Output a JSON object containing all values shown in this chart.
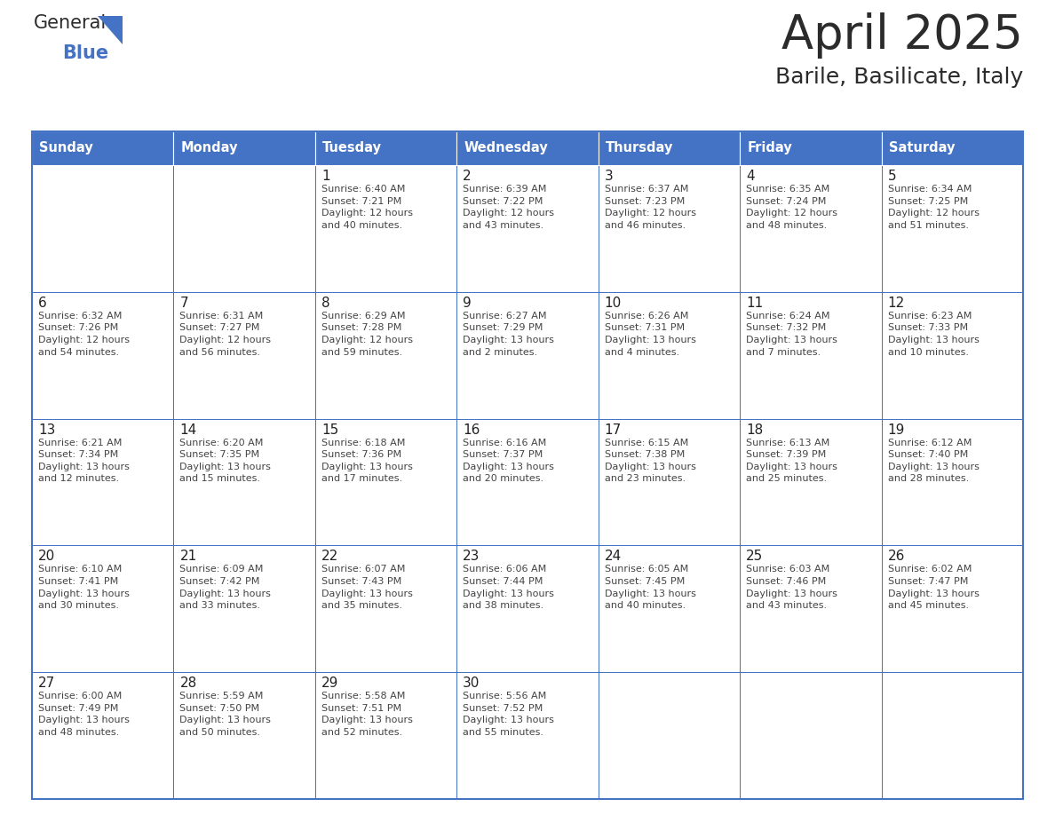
{
  "title": "April 2025",
  "subtitle": "Barile, Basilicate, Italy",
  "header_bg_color": "#4472C4",
  "header_text_color": "#FFFFFF",
  "border_color": "#4472C4",
  "cell_line_color": "#B0B8D0",
  "text_color": "#333333",
  "day_headers": [
    "Sunday",
    "Monday",
    "Tuesday",
    "Wednesday",
    "Thursday",
    "Friday",
    "Saturday"
  ],
  "weeks": [
    [
      {
        "day": "",
        "text": ""
      },
      {
        "day": "",
        "text": ""
      },
      {
        "day": "1",
        "text": "Sunrise: 6:40 AM\nSunset: 7:21 PM\nDaylight: 12 hours\nand 40 minutes."
      },
      {
        "day": "2",
        "text": "Sunrise: 6:39 AM\nSunset: 7:22 PM\nDaylight: 12 hours\nand 43 minutes."
      },
      {
        "day": "3",
        "text": "Sunrise: 6:37 AM\nSunset: 7:23 PM\nDaylight: 12 hours\nand 46 minutes."
      },
      {
        "day": "4",
        "text": "Sunrise: 6:35 AM\nSunset: 7:24 PM\nDaylight: 12 hours\nand 48 minutes."
      },
      {
        "day": "5",
        "text": "Sunrise: 6:34 AM\nSunset: 7:25 PM\nDaylight: 12 hours\nand 51 minutes."
      }
    ],
    [
      {
        "day": "6",
        "text": "Sunrise: 6:32 AM\nSunset: 7:26 PM\nDaylight: 12 hours\nand 54 minutes."
      },
      {
        "day": "7",
        "text": "Sunrise: 6:31 AM\nSunset: 7:27 PM\nDaylight: 12 hours\nand 56 minutes."
      },
      {
        "day": "8",
        "text": "Sunrise: 6:29 AM\nSunset: 7:28 PM\nDaylight: 12 hours\nand 59 minutes."
      },
      {
        "day": "9",
        "text": "Sunrise: 6:27 AM\nSunset: 7:29 PM\nDaylight: 13 hours\nand 2 minutes."
      },
      {
        "day": "10",
        "text": "Sunrise: 6:26 AM\nSunset: 7:31 PM\nDaylight: 13 hours\nand 4 minutes."
      },
      {
        "day": "11",
        "text": "Sunrise: 6:24 AM\nSunset: 7:32 PM\nDaylight: 13 hours\nand 7 minutes."
      },
      {
        "day": "12",
        "text": "Sunrise: 6:23 AM\nSunset: 7:33 PM\nDaylight: 13 hours\nand 10 minutes."
      }
    ],
    [
      {
        "day": "13",
        "text": "Sunrise: 6:21 AM\nSunset: 7:34 PM\nDaylight: 13 hours\nand 12 minutes."
      },
      {
        "day": "14",
        "text": "Sunrise: 6:20 AM\nSunset: 7:35 PM\nDaylight: 13 hours\nand 15 minutes."
      },
      {
        "day": "15",
        "text": "Sunrise: 6:18 AM\nSunset: 7:36 PM\nDaylight: 13 hours\nand 17 minutes."
      },
      {
        "day": "16",
        "text": "Sunrise: 6:16 AM\nSunset: 7:37 PM\nDaylight: 13 hours\nand 20 minutes."
      },
      {
        "day": "17",
        "text": "Sunrise: 6:15 AM\nSunset: 7:38 PM\nDaylight: 13 hours\nand 23 minutes."
      },
      {
        "day": "18",
        "text": "Sunrise: 6:13 AM\nSunset: 7:39 PM\nDaylight: 13 hours\nand 25 minutes."
      },
      {
        "day": "19",
        "text": "Sunrise: 6:12 AM\nSunset: 7:40 PM\nDaylight: 13 hours\nand 28 minutes."
      }
    ],
    [
      {
        "day": "20",
        "text": "Sunrise: 6:10 AM\nSunset: 7:41 PM\nDaylight: 13 hours\nand 30 minutes."
      },
      {
        "day": "21",
        "text": "Sunrise: 6:09 AM\nSunset: 7:42 PM\nDaylight: 13 hours\nand 33 minutes."
      },
      {
        "day": "22",
        "text": "Sunrise: 6:07 AM\nSunset: 7:43 PM\nDaylight: 13 hours\nand 35 minutes."
      },
      {
        "day": "23",
        "text": "Sunrise: 6:06 AM\nSunset: 7:44 PM\nDaylight: 13 hours\nand 38 minutes."
      },
      {
        "day": "24",
        "text": "Sunrise: 6:05 AM\nSunset: 7:45 PM\nDaylight: 13 hours\nand 40 minutes."
      },
      {
        "day": "25",
        "text": "Sunrise: 6:03 AM\nSunset: 7:46 PM\nDaylight: 13 hours\nand 43 minutes."
      },
      {
        "day": "26",
        "text": "Sunrise: 6:02 AM\nSunset: 7:47 PM\nDaylight: 13 hours\nand 45 minutes."
      }
    ],
    [
      {
        "day": "27",
        "text": "Sunrise: 6:00 AM\nSunset: 7:49 PM\nDaylight: 13 hours\nand 48 minutes."
      },
      {
        "day": "28",
        "text": "Sunrise: 5:59 AM\nSunset: 7:50 PM\nDaylight: 13 hours\nand 50 minutes."
      },
      {
        "day": "29",
        "text": "Sunrise: 5:58 AM\nSunset: 7:51 PM\nDaylight: 13 hours\nand 52 minutes."
      },
      {
        "day": "30",
        "text": "Sunrise: 5:56 AM\nSunset: 7:52 PM\nDaylight: 13 hours\nand 55 minutes."
      },
      {
        "day": "",
        "text": ""
      },
      {
        "day": "",
        "text": ""
      },
      {
        "day": "",
        "text": ""
      }
    ]
  ]
}
